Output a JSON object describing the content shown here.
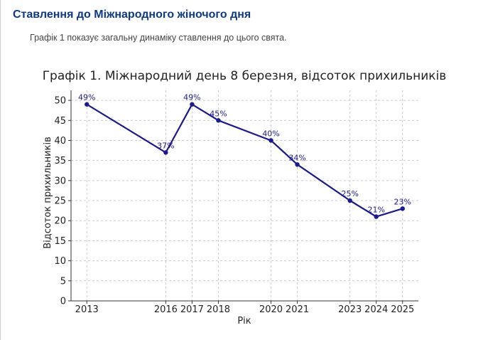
{
  "article": {
    "heading": "Ставлення до Міжнародного жіночого дня",
    "intro": "Графік 1 показує загальну динаміку ставлення до цього свята."
  },
  "colors": {
    "line": "#1a1a8c",
    "heading": "#0d3a82"
  },
  "chart_data": {
    "type": "line",
    "title": "Графік 1. Міжнародний день 8 березня, відсоток прихильників",
    "xlabel": "Рік",
    "ylabel": "Відсоток прихильників",
    "x": [
      2013,
      2016,
      2017,
      2018,
      2020,
      2021,
      2023,
      2024,
      2025
    ],
    "x_tick_labels": [
      "2013",
      "2016",
      "2017",
      "2018",
      "2020",
      "2021",
      "2023",
      "2024",
      "2025"
    ],
    "y_ticks": [
      0,
      5,
      10,
      15,
      20,
      25,
      30,
      35,
      40,
      45,
      50
    ],
    "ylim": [
      0,
      52.5
    ],
    "xlim": [
      2012.4,
      2025.6
    ],
    "grid": true,
    "series": [
      {
        "values": [
          49,
          37,
          49,
          45,
          40,
          34,
          25,
          21,
          23
        ],
        "data_labels": [
          "49%",
          "37%",
          "49%",
          "45%",
          "40%",
          "34%",
          "25%",
          "21%",
          "23%"
        ]
      }
    ]
  }
}
